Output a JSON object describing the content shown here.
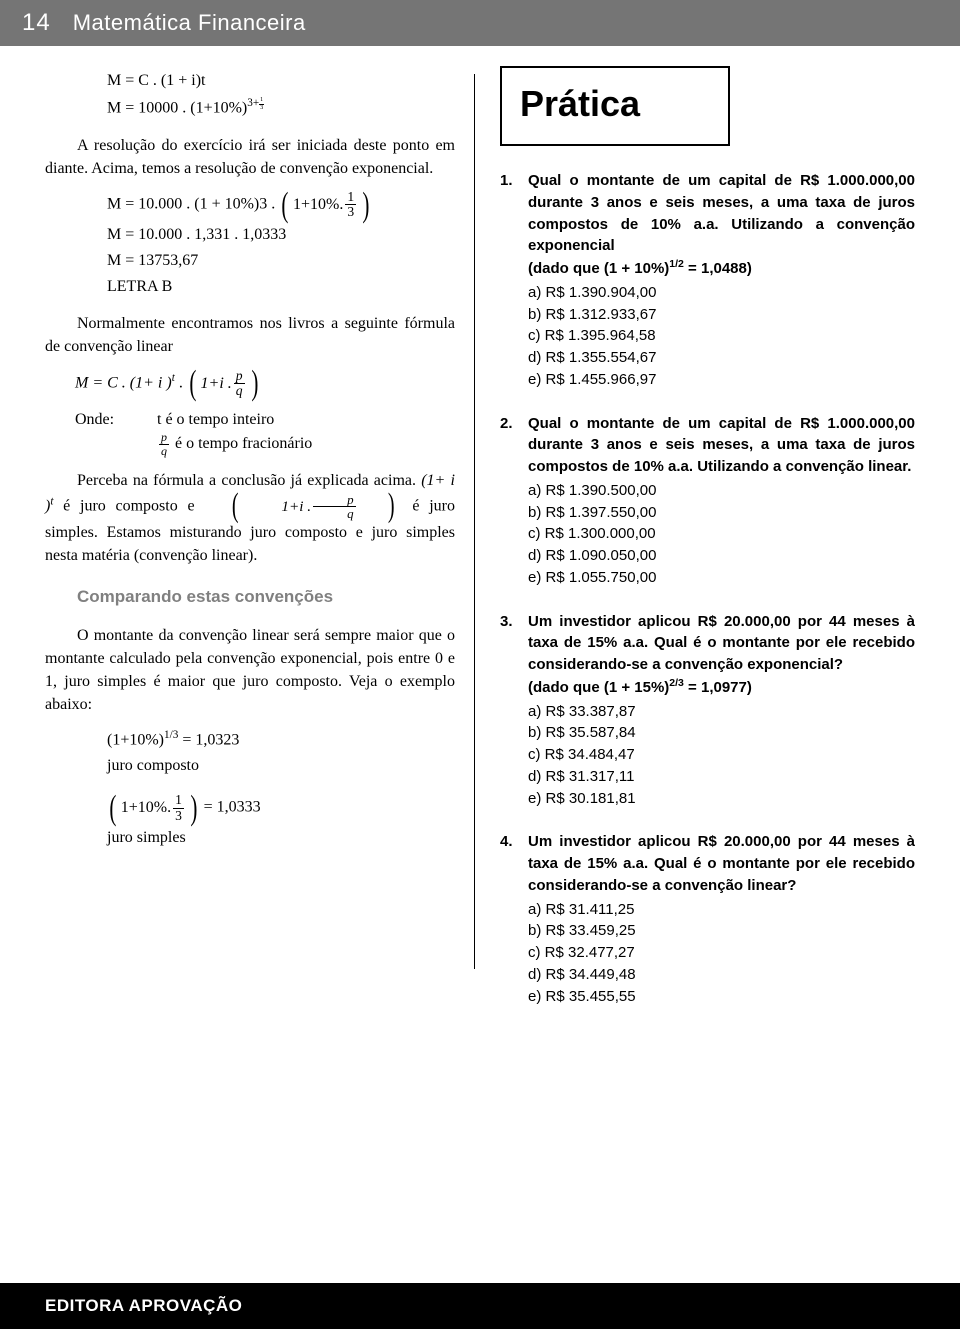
{
  "header": {
    "page_number": "14",
    "title": "Matemática Financeira"
  },
  "left": {
    "eq1": "M = C . (1 + i)t",
    "eq2_prefix": "M = 10000 . ",
    "eq2_base": "(1+10%)",
    "eq2_exp_int": "3+",
    "eq2_exp_num": "1",
    "eq2_exp_den": "3",
    "p1": "A resolução do exercício irá ser iniciada deste ponto em diante. Acima, temos a resolução de convenção exponencial.",
    "eq3_prefix": "M = 10.000 . (1 + 10%)3 . ",
    "eq3_inner": "1+10%.",
    "eq3_num": "1",
    "eq3_den": "3",
    "eq4": "M = 10.000 . 1,331 . 1,0333",
    "eq5": "M = 13753,67",
    "eq6": "LETRA B",
    "p2": "Normalmente encontramos nos livros a seguinte fórmula de convenção linear",
    "formula_lhs": "M = C .",
    "formula_b1": "(1+ i )",
    "formula_b1_sup": "t",
    "formula_dot": " . ",
    "formula_b2": "1+i  .",
    "formula_p": "p",
    "formula_q": "q",
    "onde_label": "Onde:",
    "onde_t": "t é o tempo inteiro",
    "onde_pq": " é o tempo fracionário",
    "p3a": "Perceba na fórmula a conclusão já explicada acima. ",
    "p3b": " é juro composto e ",
    "p3c": " é juro simples. Estamos misturando juro composto e juro simples nesta matéria (convenção linear).",
    "sub": "Comparando estas convenções",
    "p4": "O montante da convenção linear será sempre maior que o montante calculado pela convenção exponencial, pois entre 0 e 1, juro simples é maior que juro composto. Veja o exemplo abaixo:",
    "ex1a": "(1+10%)",
    "ex1a_sup": "1/3",
    "ex1a_eq": " = 1,0323",
    "ex1b": "juro composto",
    "ex2_inner": "1+10%.",
    "ex2_num": "1",
    "ex2_den": "3",
    "ex2_eq": " = 1,0333",
    "ex2b": "juro simples"
  },
  "pratica": "Prática",
  "questions": [
    {
      "num": "1.",
      "text": "Qual o montante de um capital de R$ 1.000.000,00 durante 3 anos e seis meses, a uma taxa de juros compostos de 10% a.a. Utilizando a convenção exponencial",
      "hint": "(dado que (1 + 10%)<sup>1/2</sup> = 1,0488)",
      "opts": [
        "a) R$ 1.390.904,00",
        "b) R$ 1.312.933,67",
        "c) R$ 1.395.964,58",
        "d) R$ 1.355.554,67",
        "e) R$ 1.455.966,97"
      ]
    },
    {
      "num": "2.",
      "text": "Qual o montante de um capital de R$ 1.000.000,00 durante 3 anos e seis meses, a uma taxa de juros compostos de 10% a.a. Utilizando a convenção linear.",
      "hint": "",
      "opts": [
        "a) R$ 1.390.500,00",
        "b) R$ 1.397.550,00",
        "c) R$ 1.300.000,00",
        "d) R$ 1.090.050,00",
        "e) R$ 1.055.750,00"
      ]
    },
    {
      "num": "3.",
      "text": "Um investidor aplicou R$ 20.000,00 por 44 meses à taxa de 15% a.a. Qual é o montante por ele recebido considerando-se a convenção exponencial?",
      "hint": "(dado que (1 + 15%)<sup>2/3</sup> = 1,0977)",
      "opts": [
        "a) R$ 33.387,87",
        "b) R$ 35.587,84",
        "c) R$ 34.484,47",
        "d) R$ 31.317,11",
        "e) R$ 30.181,81"
      ]
    },
    {
      "num": "4.",
      "text": "Um investidor aplicou R$ 20.000,00 por 44 meses à taxa de 15% a.a. Qual é o montante por ele recebido considerando-se a convenção linear?",
      "hint": "",
      "opts": [
        "a) R$ 31.411,25",
        "b) R$ 33.459,25",
        "c) R$ 32.477,27",
        "d) R$ 34.449,48",
        "e) R$ 35.455,55"
      ]
    }
  ],
  "footer": "EDITORA APROVAÇÃO"
}
